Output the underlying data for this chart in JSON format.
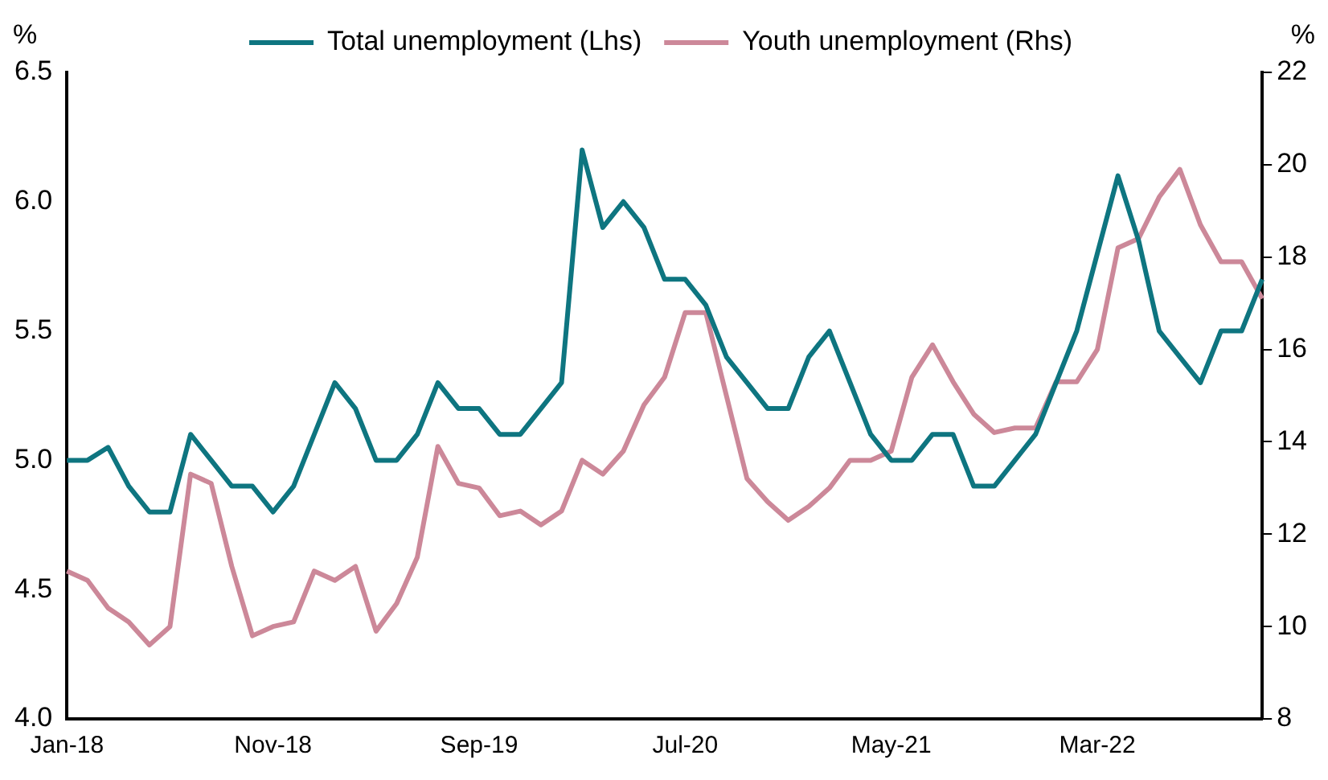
{
  "chart_data": {
    "type": "line",
    "ylabel": "%",
    "y2label": "%",
    "categories": [
      "Jan-18",
      null,
      null,
      null,
      null,
      null,
      null,
      null,
      null,
      null,
      "Nov-18",
      null,
      null,
      null,
      null,
      null,
      null,
      null,
      null,
      null,
      "Sep-19",
      null,
      null,
      null,
      null,
      null,
      null,
      null,
      null,
      null,
      "Jul-20",
      null,
      null,
      null,
      null,
      null,
      null,
      null,
      null,
      null,
      "May-21",
      null,
      null,
      null,
      null,
      null,
      null,
      null,
      null,
      null,
      "Mar-22",
      null,
      null,
      null,
      null,
      null,
      null,
      null,
      null
    ],
    "series": [
      {
        "name": "Total unemployment (Lhs)",
        "color": "#0e7580",
        "values": [
          5.0,
          5.0,
          5.05,
          4.9,
          4.8,
          4.8,
          5.1,
          5.0,
          4.9,
          4.9,
          4.8,
          4.9,
          5.1,
          5.3,
          5.2,
          5.0,
          5.0,
          5.1,
          5.3,
          5.2,
          5.2,
          5.1,
          5.1,
          5.2,
          5.3,
          6.2,
          5.9,
          6.0,
          5.9,
          5.7,
          5.7,
          5.6,
          5.4,
          5.3,
          5.2,
          5.2,
          5.4,
          5.5,
          5.3,
          5.1,
          5.0,
          5.0,
          5.1,
          5.1,
          4.9,
          4.9,
          5.0,
          5.1,
          5.3,
          5.5,
          5.8,
          6.1,
          5.85,
          5.5,
          5.4,
          5.3,
          5.5,
          5.5,
          5.7
        ]
      },
      {
        "name": "Youth unemployment (Rhs)",
        "color": "#cc8899",
        "axis": "y2",
        "values": [
          11.2,
          11.0,
          10.4,
          10.1,
          9.6,
          10.0,
          13.3,
          13.1,
          11.3,
          9.8,
          10.0,
          10.1,
          11.2,
          11.0,
          11.3,
          9.9,
          10.5,
          11.5,
          13.9,
          13.1,
          13.0,
          12.4,
          12.5,
          12.2,
          12.5,
          13.6,
          13.3,
          13.8,
          14.8,
          15.4,
          16.8,
          16.8,
          15.0,
          13.2,
          12.7,
          12.3,
          12.6,
          13.0,
          13.6,
          13.6,
          13.8,
          15.4,
          16.1,
          15.3,
          14.6,
          14.2,
          14.3,
          14.3,
          15.3,
          15.3,
          16.0,
          18.2,
          18.4,
          19.3,
          19.9,
          18.7,
          17.9,
          17.9,
          17.1
        ]
      }
    ],
    "ylim": [
      4.0,
      6.5
    ],
    "yticks": [
      {
        "value": 4,
        "label": "4.0"
      },
      4.5,
      {
        "value": 5,
        "label": "5.0"
      },
      5.5,
      {
        "value": 6,
        "label": "6.0"
      },
      6.5
    ],
    "y2lim": [
      8,
      22
    ],
    "y2ticks": [
      8,
      10,
      12,
      14,
      16,
      18,
      20,
      22
    ],
    "grid": false,
    "legend": "top",
    "marker": "none",
    "line_style": "solid"
  }
}
